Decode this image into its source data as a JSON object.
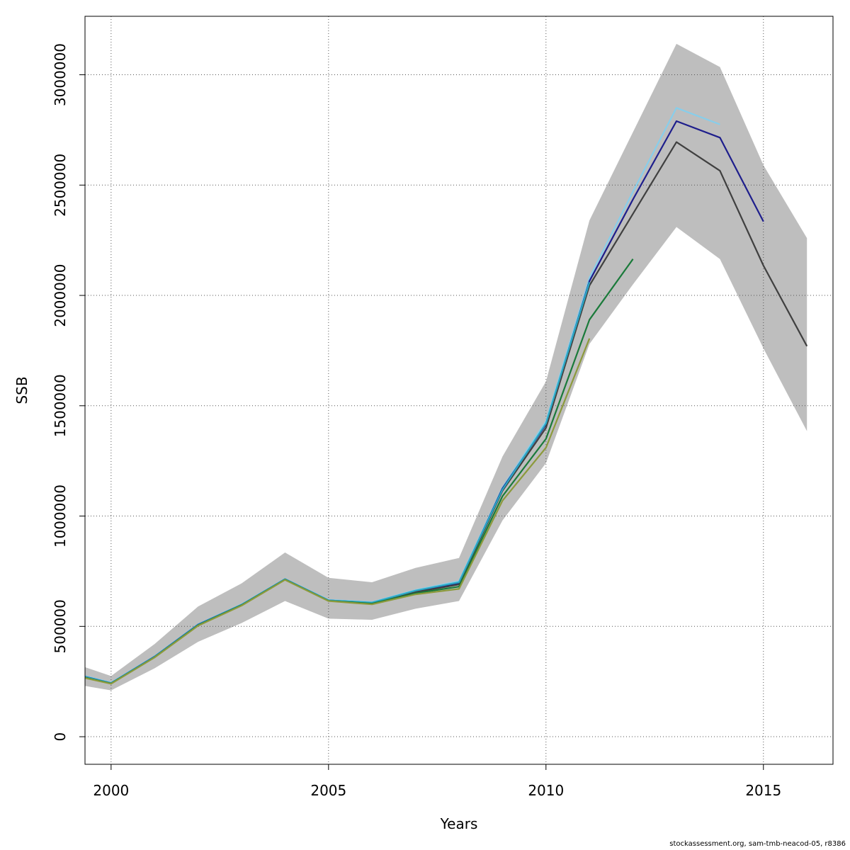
{
  "footer": "stockassessment.org, sam-tmb-neacod-05, r8386",
  "chart_data": {
    "type": "line",
    "title": "",
    "xlabel": "Years",
    "ylabel": "SSB",
    "xlim": [
      1999.4,
      2016.6
    ],
    "ylim": [
      -125000,
      3265000
    ],
    "xticks": [
      2000,
      2005,
      2010,
      2015
    ],
    "yticks": [
      0,
      500000,
      1000000,
      1500000,
      2000000,
      2500000,
      3000000
    ],
    "grid": true,
    "grid_style": "dotted",
    "band": {
      "fill": "#bebebe",
      "x": [
        1999.4,
        2000,
        2001,
        2002,
        2003,
        2004,
        2005,
        2006,
        2007,
        2008,
        2009,
        2010,
        2011,
        2012,
        2013,
        2014,
        2015,
        2016
      ],
      "lower": [
        230000,
        210000,
        310000,
        430000,
        515000,
        615000,
        535000,
        530000,
        580000,
        615000,
        980000,
        1240000,
        1780000,
        2050000,
        2310000,
        2165000,
        1760000,
        1385000
      ],
      "upper": [
        315000,
        275000,
        420000,
        590000,
        695000,
        835000,
        720000,
        700000,
        765000,
        810000,
        1270000,
        1610000,
        2340000,
        2740000,
        3140000,
        3035000,
        2590000,
        2260000
      ]
    },
    "series": [
      {
        "color": "#87ceeb",
        "x": [
          1999.4,
          2000,
          2001,
          2002,
          2003,
          2004,
          2005,
          2006,
          2007,
          2008,
          2009,
          2010,
          2011,
          2012,
          2013,
          2014
        ],
        "values": [
          275000,
          245000,
          365000,
          510000,
          600000,
          715000,
          620000,
          610000,
          665000,
          705000,
          1130000,
          1430000,
          2080000,
          2470000,
          2850000,
          2775000
        ]
      },
      {
        "color": "#1e1e8c",
        "x": [
          1999.4,
          2000,
          2001,
          2002,
          2003,
          2004,
          2005,
          2006,
          2007,
          2008,
          2009,
          2010,
          2011,
          2012,
          2013,
          2014,
          2015
        ],
        "values": [
          272000,
          243000,
          363000,
          508000,
          598000,
          714000,
          618000,
          607000,
          658000,
          696000,
          1125000,
          1415000,
          2065000,
          2435000,
          2790000,
          2715000,
          2335000
        ]
      },
      {
        "color": "#404040",
        "x": [
          1999.4,
          2000,
          2001,
          2002,
          2003,
          2004,
          2005,
          2006,
          2007,
          2008,
          2009,
          2010,
          2011,
          2012,
          2013,
          2014,
          2015,
          2016
        ],
        "values": [
          270000,
          242000,
          362000,
          506000,
          597000,
          713000,
          617000,
          605000,
          655000,
          690000,
          1115000,
          1400000,
          2045000,
          2370000,
          2695000,
          2565000,
          2135000,
          1770000
        ]
      },
      {
        "color": "#2aa9c4",
        "x": [
          1999.4,
          2000,
          2001,
          2002,
          2003,
          2004,
          2005,
          2006,
          2007,
          2008,
          2009,
          2010,
          2011
        ],
        "values": [
          271000,
          243000,
          362000,
          507000,
          598000,
          714000,
          618000,
          608000,
          662000,
          700000,
          1120000,
          1420000,
          2060000
        ]
      },
      {
        "color": "#1a7a3a",
        "x": [
          1999.4,
          2000,
          2001,
          2002,
          2003,
          2004,
          2005,
          2006,
          2007,
          2008,
          2009,
          2010,
          2011,
          2012
        ],
        "values": [
          268000,
          241000,
          360000,
          505000,
          596000,
          712000,
          616000,
          603000,
          650000,
          680000,
          1090000,
          1350000,
          1890000,
          2165000
        ]
      },
      {
        "color": "#8c9a3c",
        "x": [
          1999.4,
          2000,
          2001,
          2002,
          2003,
          2004,
          2005,
          2006,
          2007,
          2008,
          2009,
          2010,
          2011
        ],
        "values": [
          266000,
          240000,
          359000,
          503000,
          594000,
          711000,
          615000,
          600000,
          645000,
          670000,
          1070000,
          1310000,
          1805000
        ]
      }
    ]
  }
}
